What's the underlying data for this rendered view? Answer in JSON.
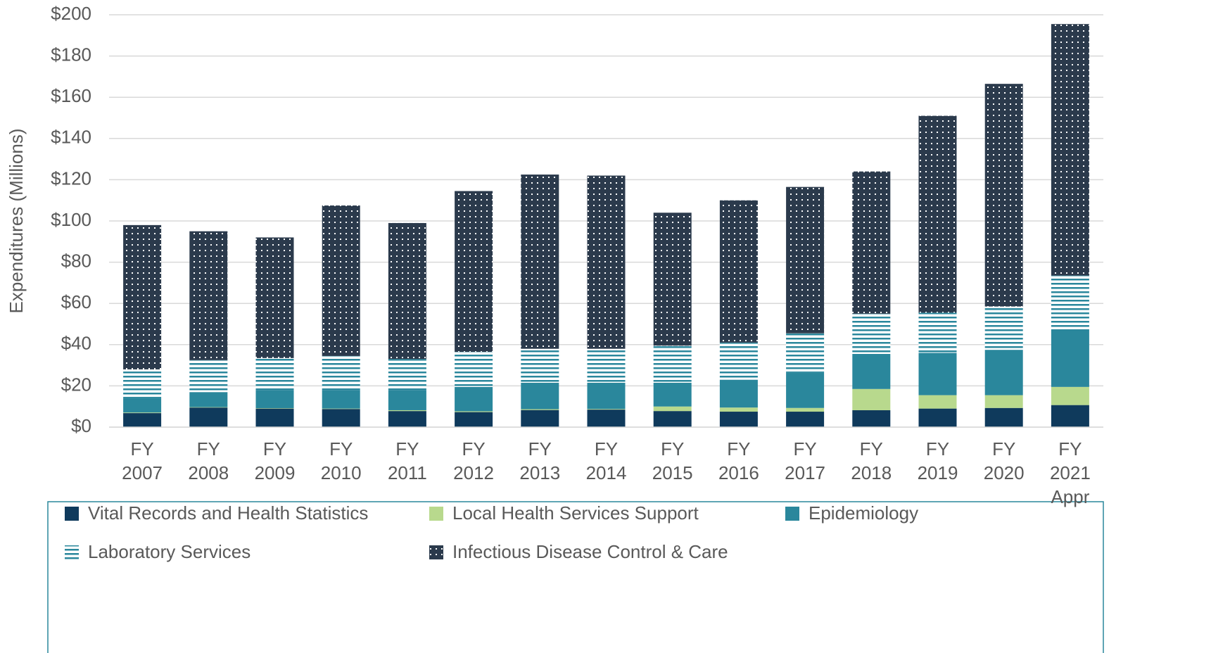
{
  "chart_data": {
    "type": "stacked_bar",
    "y_label": "Expenditures (Millions)",
    "categories": [
      "FY 2007",
      "FY 2008",
      "FY 2009",
      "FY 2010",
      "FY 2011",
      "FY 2012",
      "FY 2013",
      "FY 2014",
      "FY 2015",
      "FY 2016",
      "FY 2017",
      "FY 2018",
      "FY 2019",
      "FY 2020",
      "FY 2021 Appr"
    ],
    "series": [
      {
        "name": "Vital Records and Health Statistics",
        "color": "#0f3a5c",
        "pattern": "solid",
        "values": [
          6.8,
          9.5,
          9,
          8.8,
          7.8,
          7.3,
          8.3,
          8.5,
          7.8,
          7.5,
          7.5,
          8.2,
          9,
          9.3,
          10.7
        ]
      },
      {
        "name": "Local Health Services Support",
        "color": "#b8d98d",
        "pattern": "solid",
        "values": [
          0.3,
          0.2,
          0.2,
          0.2,
          0.4,
          0.4,
          0.4,
          0.3,
          2.2,
          2,
          1.8,
          10.3,
          6.5,
          6.2,
          8.8
        ]
      },
      {
        "name": "Epidemiology",
        "color": "#2a879c",
        "pattern": "solid",
        "values": [
          7.2,
          7.3,
          8.8,
          9,
          9.8,
          11.8,
          12.8,
          12.7,
          11.5,
          13.5,
          17.2,
          17,
          20.5,
          22,
          28
        ]
      },
      {
        "name": "Laboratory Services",
        "color": "#2a879c",
        "pattern": "stripes",
        "values": [
          13.7,
          15.5,
          15.5,
          16.5,
          15,
          17,
          16.5,
          16.5,
          18,
          18,
          19,
          19.5,
          19.5,
          21,
          26
        ]
      },
      {
        "name": "Infectious Disease Control & Care",
        "color": "#2b3a4c",
        "pattern": "dots",
        "values": [
          70,
          62.5,
          58.5,
          73,
          66,
          78,
          84.5,
          84,
          64.5,
          69,
          71,
          69,
          95.5,
          108,
          122
        ]
      }
    ],
    "ylim": [
      0,
      200
    ],
    "yticks": [
      {
        "value": 0,
        "label": "$0"
      },
      {
        "value": 20,
        "label": "$20"
      },
      {
        "value": 40,
        "label": "$40"
      },
      {
        "value": 60,
        "label": "$60"
      },
      {
        "value": 80,
        "label": "$80"
      },
      {
        "value": 100,
        "label": "$100"
      },
      {
        "value": 120,
        "label": "$120"
      },
      {
        "value": 140,
        "label": "$140"
      },
      {
        "value": 160,
        "label": "$160"
      },
      {
        "value": 180,
        "label": "$180"
      },
      {
        "value": 200,
        "label": "$200"
      }
    ],
    "grid": true,
    "legend": "bottom"
  }
}
